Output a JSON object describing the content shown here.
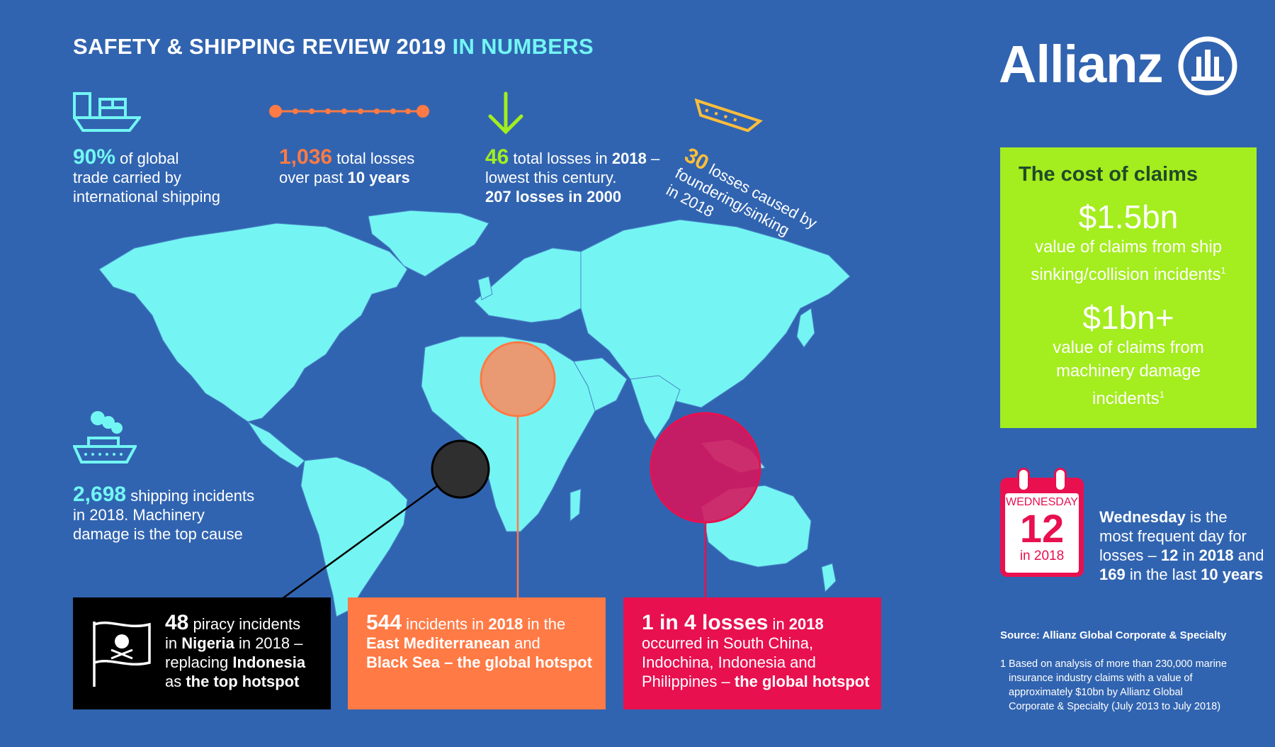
{
  "header": {
    "title_main": "SAFETY & SHIPPING REVIEW 2019",
    "title_highlight": "IN NUMBERS"
  },
  "brand": {
    "name": "Allianz",
    "logo_icon": "allianz-eagle-emblem-icon"
  },
  "colors": {
    "background": "#3164b0",
    "teal": "#72f6f4",
    "orange": "#ff7a45",
    "green": "#a2ee1f",
    "yellow": "#ffbe3a",
    "pink": "#e8104f",
    "map": "#74f5f3",
    "lime_box": "#a4ed1e"
  },
  "stats": {
    "trade": {
      "icon": "cargo-ship-icon",
      "value": "90%",
      "text1": " of global",
      "text2": "trade carried by",
      "text3": "international shipping"
    },
    "losses": {
      "icon": "timeline-dots-icon",
      "value": "1,036",
      "text1": " total losses",
      "text2a": "over past ",
      "text2b": "10 years"
    },
    "lowest": {
      "icon": "down-arrow-icon",
      "value": "46",
      "text1a": " total losses in ",
      "text1b": "2018",
      "text1c": " –",
      "text2": "lowest this century.",
      "text3a": "207",
      "text3b": " losses in ",
      "text3c": "2000"
    },
    "sinking": {
      "icon": "sinking-ship-icon",
      "value": "30",
      "text1": " losses caused by",
      "text2": "foundering/sinking",
      "text3": "in 2018"
    },
    "incidents": {
      "icon": "cruise-ship-icon",
      "value": "2,698",
      "text1": " shipping incidents",
      "text2": "in 2018. Machinery",
      "text3": "damage is the top cause"
    }
  },
  "cost_of_claims": {
    "heading": "The cost of claims",
    "amount1": "$1.5bn",
    "desc1_line1": "value of claims from ship",
    "desc1_line2": "sinking/collision incidents",
    "footnote_mark": "1",
    "amount2": "$1bn+",
    "desc2_line1": "value of claims from",
    "desc2_line2": "machinery damage",
    "desc2_line3": "incidents"
  },
  "calendar": {
    "icon": "calendar-icon",
    "day": "WEDNESDAY",
    "date": "12",
    "year": "in 2018",
    "text_bold1": "Wednesday",
    "text1": " is the",
    "text2": "most frequent day for",
    "text3a": "losses – ",
    "text3b": "12",
    "text3c": " in ",
    "text3d": "2018",
    "text3e": " and",
    "text4a": "169",
    "text4b": " in the last ",
    "text4c": "10 years"
  },
  "hotspots": {
    "piracy": {
      "icon": "pirate-flag-icon",
      "value": "48",
      "l1": " piracy incidents",
      "l2a": "in ",
      "l2b": "Nigeria",
      "l2c": " in 2018 –",
      "l3a": "replacing ",
      "l3b": "Indonesia",
      "l4a": "as ",
      "l4b": "the top hotspot"
    },
    "mediterranean": {
      "value": "544",
      "l1a": " incidents in ",
      "l1b": "2018",
      "l1c": " in the",
      "l2a": "East Mediterranean",
      "l2b": " and",
      "l3": "Black Sea – the global hotspot"
    },
    "south_china": {
      "value": "1 in 4 losses",
      "l1a": " in ",
      "l1b": "2018",
      "l2": "occurred in South China,",
      "l3": "Indochina, Indonesia and",
      "l4a": "Philippines – ",
      "l4b": "the global hotspot"
    }
  },
  "source": {
    "label": "Source: Allianz Global Corporate & Specialty",
    "note_num": "1",
    "note_l1": "Based on analysis of more than 230,000 marine",
    "note_l2": "insurance industry claims with a value of",
    "note_l3": "approximately $10bn by Allianz Global",
    "note_l4": "Corporate & Specialty (July 2013 to July 2018)"
  }
}
